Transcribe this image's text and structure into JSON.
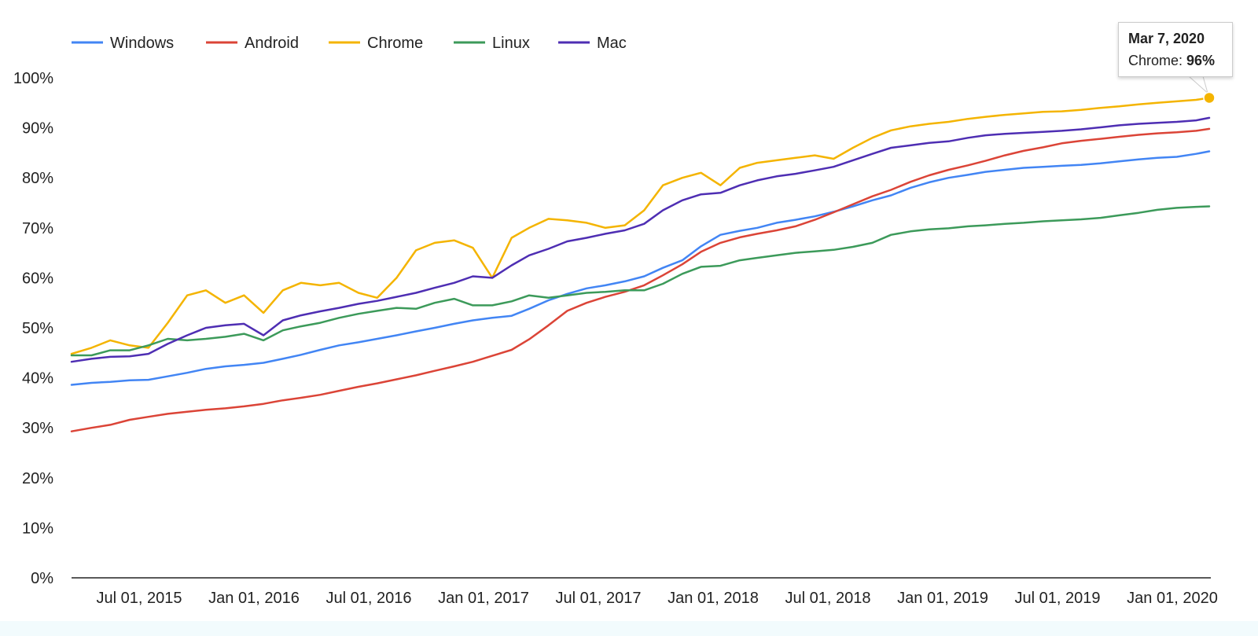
{
  "chart_data": {
    "type": "line",
    "title": "",
    "xlabel": "",
    "ylabel": "",
    "x_tick_labels": [
      "Jul 01, 2015",
      "Jan 01, 2016",
      "Jul 01, 2016",
      "Jan 01, 2017",
      "Jul 01, 2017",
      "Jan 01, 2018",
      "Jul 01, 2018",
      "Jan 01, 2019",
      "Jul 01, 2019",
      "Jan 01, 2020"
    ],
    "y_tick_labels": [
      "0%",
      "10%",
      "20%",
      "30%",
      "40%",
      "50%",
      "60%",
      "70%",
      "80%",
      "90%",
      "100%"
    ],
    "ylim": [
      0,
      100
    ],
    "xlim": [
      "2015-03-14",
      "2020-03-07"
    ],
    "grid": false,
    "legend_position": "top-left",
    "x": [
      "2015-03-14",
      "2015-04-15",
      "2015-05-15",
      "2015-06-15",
      "2015-07-15",
      "2015-08-15",
      "2015-09-15",
      "2015-10-15",
      "2015-11-15",
      "2015-12-15",
      "2016-01-15",
      "2016-02-15",
      "2016-03-15",
      "2016-04-15",
      "2016-05-15",
      "2016-06-15",
      "2016-07-15",
      "2016-08-15",
      "2016-09-15",
      "2016-10-15",
      "2016-11-15",
      "2016-12-15",
      "2017-01-15",
      "2017-02-15",
      "2017-03-15",
      "2017-04-15",
      "2017-05-15",
      "2017-06-15",
      "2017-07-15",
      "2017-08-15",
      "2017-09-15",
      "2017-10-15",
      "2017-11-15",
      "2017-12-15",
      "2018-01-15",
      "2018-02-15",
      "2018-03-15",
      "2018-04-15",
      "2018-05-15",
      "2018-06-15",
      "2018-07-15",
      "2018-08-15",
      "2018-09-15",
      "2018-10-15",
      "2018-11-15",
      "2018-12-15",
      "2019-01-15",
      "2019-02-15",
      "2019-03-15",
      "2019-04-15",
      "2019-05-15",
      "2019-06-15",
      "2019-07-15",
      "2019-08-15",
      "2019-09-15",
      "2019-10-15",
      "2019-11-15",
      "2019-12-15",
      "2020-01-15",
      "2020-02-15",
      "2020-03-07"
    ],
    "series": [
      {
        "name": "Windows",
        "color": "#4285f4",
        "values": [
          38.6,
          39.0,
          39.2,
          39.5,
          39.6,
          40.3,
          41.0,
          41.8,
          42.3,
          42.6,
          43.0,
          43.8,
          44.6,
          45.6,
          46.5,
          47.1,
          47.8,
          48.5,
          49.3,
          50.0,
          50.8,
          51.5,
          52.0,
          52.4,
          53.8,
          55.5,
          56.8,
          57.9,
          58.5,
          59.3,
          60.3,
          62.0,
          63.5,
          66.3,
          68.6,
          69.4,
          70.0,
          71.0,
          71.6,
          72.3,
          73.2,
          74.3,
          75.5,
          76.5,
          78.0,
          79.1,
          80.0,
          80.6,
          81.2,
          81.6,
          82.0,
          82.2,
          82.4,
          82.6,
          82.9,
          83.3,
          83.7,
          84.0,
          84.2,
          84.8,
          85.3
        ]
      },
      {
        "name": "Android",
        "color": "#db4437",
        "values": [
          29.3,
          30.0,
          30.6,
          31.6,
          32.2,
          32.8,
          33.2,
          33.6,
          33.9,
          34.3,
          34.8,
          35.5,
          36.0,
          36.6,
          37.4,
          38.2,
          38.9,
          39.7,
          40.5,
          41.4,
          42.3,
          43.2,
          44.4,
          45.6,
          47.7,
          50.5,
          53.4,
          55.0,
          56.2,
          57.2,
          58.5,
          60.5,
          62.7,
          65.2,
          67.0,
          68.1,
          68.8,
          69.5,
          70.3,
          71.6,
          73.1,
          74.7,
          76.3,
          77.6,
          79.2,
          80.5,
          81.6,
          82.5,
          83.4,
          84.5,
          85.4,
          86.1,
          86.9,
          87.4,
          87.8,
          88.2,
          88.6,
          88.9,
          89.1,
          89.4,
          89.8
        ]
      },
      {
        "name": "Chrome",
        "color": "#f4b400",
        "values": [
          44.8,
          46.0,
          47.5,
          46.5,
          46.0,
          51.0,
          56.5,
          57.5,
          55.0,
          56.5,
          53.0,
          57.5,
          59.0,
          58.5,
          59.0,
          57.0,
          56.0,
          60.0,
          65.5,
          67.0,
          67.5,
          66.0,
          60.0,
          68.0,
          70.0,
          71.8,
          71.5,
          71.0,
          70.0,
          70.5,
          73.5,
          78.5,
          80.0,
          81.0,
          78.5,
          82.0,
          83.0,
          83.5,
          84.0,
          84.5,
          83.8,
          86.0,
          88.0,
          89.5,
          90.3,
          90.8,
          91.2,
          91.8,
          92.2,
          92.6,
          92.9,
          93.2,
          93.3,
          93.6,
          94.0,
          94.3,
          94.7,
          95.0,
          95.3,
          95.6,
          96.0
        ]
      },
      {
        "name": "Linux",
        "color": "#3c9a5a",
        "values": [
          44.5,
          44.5,
          45.5,
          45.5,
          46.5,
          47.8,
          47.5,
          47.8,
          48.2,
          48.8,
          47.5,
          49.5,
          50.3,
          51.0,
          52.0,
          52.8,
          53.4,
          54.0,
          53.8,
          55.0,
          55.8,
          54.5,
          54.5,
          55.3,
          56.5,
          56.0,
          56.5,
          57.0,
          57.2,
          57.5,
          57.5,
          58.8,
          60.8,
          62.2,
          62.4,
          63.5,
          64.0,
          64.5,
          65.0,
          65.3,
          65.6,
          66.2,
          67.0,
          68.6,
          69.3,
          69.7,
          69.9,
          70.3,
          70.5,
          70.8,
          71.0,
          71.3,
          71.5,
          71.7,
          72.0,
          72.5,
          73.0,
          73.6,
          74.0,
          74.2,
          74.3
        ]
      },
      {
        "name": "Mac",
        "color": "#4e2eb3",
        "values": [
          43.2,
          43.8,
          44.2,
          44.3,
          44.8,
          46.8,
          48.5,
          50.0,
          50.5,
          50.8,
          48.5,
          51.5,
          52.5,
          53.3,
          54.0,
          54.8,
          55.4,
          56.2,
          57.0,
          58.0,
          59.0,
          60.3,
          60.0,
          62.5,
          64.5,
          65.8,
          67.3,
          68.0,
          68.8,
          69.5,
          70.8,
          73.5,
          75.5,
          76.7,
          77.0,
          78.5,
          79.5,
          80.3,
          80.8,
          81.5,
          82.2,
          83.5,
          84.8,
          86.0,
          86.5,
          87.0,
          87.3,
          88.0,
          88.5,
          88.8,
          89.0,
          89.2,
          89.4,
          89.7,
          90.1,
          90.5,
          90.8,
          91.0,
          91.2,
          91.5,
          92.0
        ]
      }
    ],
    "tooltip": {
      "date": "Mar 7, 2020",
      "series": "Chrome",
      "label": "Chrome: ",
      "value": "96%",
      "y": 96
    }
  }
}
